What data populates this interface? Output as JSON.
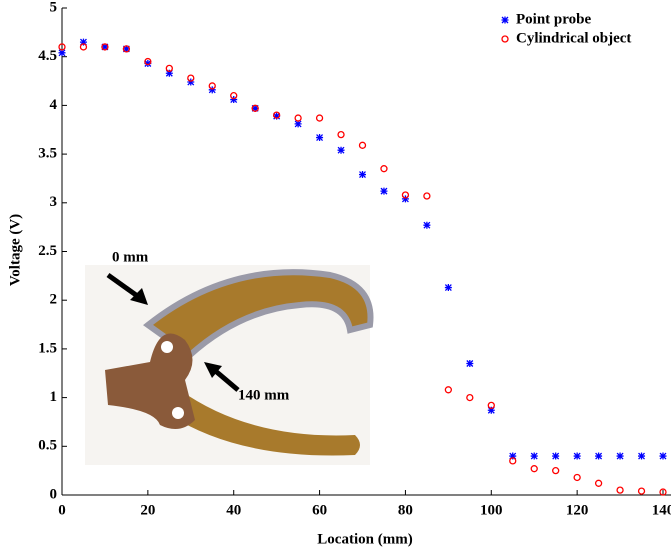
{
  "chart_data": {
    "type": "scatter",
    "xlabel": "Location (mm)",
    "ylabel": "Voltage (V)",
    "x": [
      0,
      5,
      10,
      15,
      20,
      25,
      30,
      35,
      40,
      45,
      50,
      55,
      60,
      65,
      70,
      75,
      80,
      85,
      90,
      95,
      100,
      105,
      110,
      115,
      120,
      125,
      130,
      135,
      140
    ],
    "series": [
      {
        "name": "Point probe",
        "color": "#0000ff",
        "marker": "star",
        "values": [
          4.54,
          4.65,
          4.6,
          4.58,
          4.43,
          4.33,
          4.24,
          4.16,
          4.06,
          3.97,
          3.89,
          3.81,
          3.67,
          3.54,
          3.29,
          3.12,
          3.04,
          2.77,
          2.13,
          1.35,
          0.87,
          0.4,
          0.4,
          0.4,
          0.4,
          0.4,
          0.4,
          0.4,
          0.4
        ]
      },
      {
        "name": "Cylindrical object",
        "color": "#ff0000",
        "marker": "circle",
        "values": [
          4.6,
          4.6,
          4.6,
          4.58,
          4.45,
          4.38,
          4.28,
          4.2,
          4.1,
          3.97,
          3.9,
          3.87,
          3.87,
          3.7,
          3.59,
          3.35,
          3.08,
          3.07,
          1.08,
          1.0,
          0.92,
          0.35,
          0.27,
          0.25,
          0.18,
          0.12,
          0.05,
          0.04,
          0.03
        ]
      }
    ],
    "xlim": [
      0,
      140
    ],
    "xticks": [
      0,
      20,
      40,
      60,
      80,
      100,
      120,
      140
    ],
    "ylim": [
      0,
      5
    ],
    "yticks": [
      0,
      0.5,
      1,
      1.5,
      2,
      2.5,
      3,
      3.5,
      4,
      4.5,
      5
    ],
    "legend": "upper right",
    "annotations": [
      "0 mm",
      "140 mm"
    ]
  }
}
